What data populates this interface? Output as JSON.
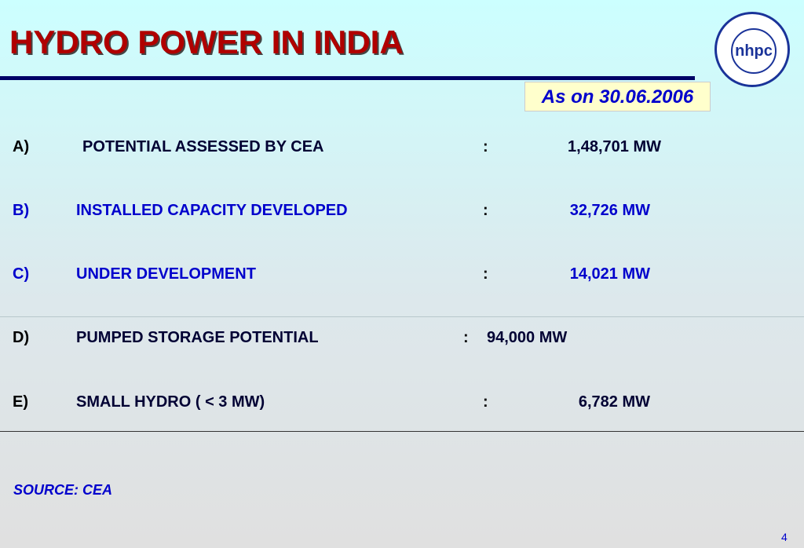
{
  "header": {
    "title": "HYDRO POWER IN INDIA",
    "date_note": "As on 30.06.2006",
    "logo": "nhpc"
  },
  "items": [
    {
      "letter": "A)",
      "label": "POTENTIAL ASSESSED BY CEA",
      "colon": ":",
      "value": "1,48,701 MW",
      "color": "#000033"
    },
    {
      "letter": "B)",
      "label": "INSTALLED CAPACITY DEVELOPED",
      "colon": ":",
      "value": "32,726 MW",
      "color": "#0000cc"
    },
    {
      "letter": "C)",
      "label": "UNDER DEVELOPMENT",
      "colon": ":",
      "value": "14,021 MW",
      "color": "#0000cc"
    },
    {
      "letter": "D)",
      "label": "PUMPED STORAGE POTENTIAL",
      "colon": ":",
      "value": "94,000 MW",
      "color": "#000033"
    },
    {
      "letter": "E)",
      "label": "SMALL HYDRO ( < 3 MW)",
      "colon": ":",
      "value": "6,782 MW",
      "color": "#000033"
    }
  ],
  "footer": {
    "source": "SOURCE: CEA",
    "page": "4"
  }
}
